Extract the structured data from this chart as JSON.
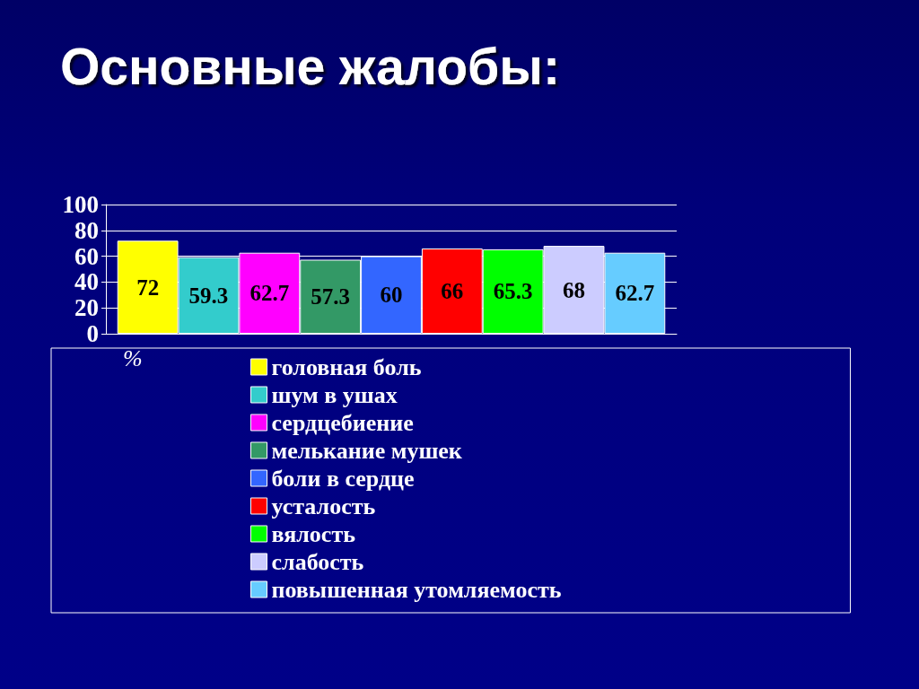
{
  "chart_data": {
    "type": "bar",
    "title": "Основные жалобы:",
    "annotations": [
      "%"
    ],
    "categories": [
      null
    ],
    "series": [
      {
        "name": "головная боль",
        "color": "#ffff00",
        "values": [
          72
        ]
      },
      {
        "name": "шум в ушах",
        "color": "#33cccc",
        "values": [
          59.3
        ]
      },
      {
        "name": "сердцебиение",
        "color": "#ff00ff",
        "values": [
          62.7
        ]
      },
      {
        "name": "мелькание мушек",
        "color": "#339966",
        "values": [
          57.3
        ]
      },
      {
        "name": "боли в сердце",
        "color": "#3366ff",
        "values": [
          60
        ]
      },
      {
        "name": "усталость",
        "color": "#ff0000",
        "values": [
          66
        ]
      },
      {
        "name": "вялость",
        "color": "#00ff00",
        "values": [
          65.3
        ]
      },
      {
        "name": "слабость",
        "color": "#ccccff",
        "values": [
          68
        ]
      },
      {
        "name": "повышенная утомляемость",
        "color": "#66ccff",
        "values": [
          62.7
        ]
      }
    ],
    "ylim": [
      0,
      100
    ],
    "yticks": [
      0,
      20,
      40,
      60,
      80,
      100
    ],
    "grid": "y",
    "legend": "bottom",
    "data_labels": true
  }
}
